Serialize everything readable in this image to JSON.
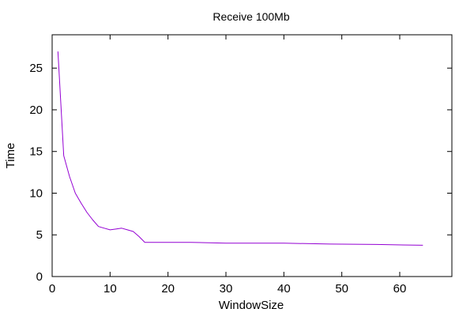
{
  "chart_data": {
    "type": "line",
    "title": "Receive 100Mb",
    "xlabel": "WindowSize",
    "ylabel": "Time",
    "xlim": [
      0,
      69
    ],
    "ylim": [
      0,
      29
    ],
    "x_ticks": [
      0,
      10,
      20,
      30,
      40,
      50,
      60
    ],
    "y_ticks": [
      0,
      5,
      10,
      15,
      20,
      25
    ],
    "grid": false,
    "series": [
      {
        "name": "",
        "color": "#9400d3",
        "x": [
          1,
          2,
          3,
          4,
          5,
          6,
          7,
          8,
          9,
          10,
          11,
          12,
          13,
          14,
          15,
          16,
          20,
          24,
          30,
          40,
          48,
          56,
          64
        ],
        "y": [
          27.0,
          14.5,
          12.0,
          10.0,
          8.8,
          7.7,
          6.8,
          6.0,
          5.8,
          5.6,
          5.7,
          5.8,
          5.6,
          5.4,
          4.8,
          4.1,
          4.1,
          4.1,
          4.0,
          4.0,
          3.9,
          3.85,
          3.75
        ]
      }
    ]
  }
}
